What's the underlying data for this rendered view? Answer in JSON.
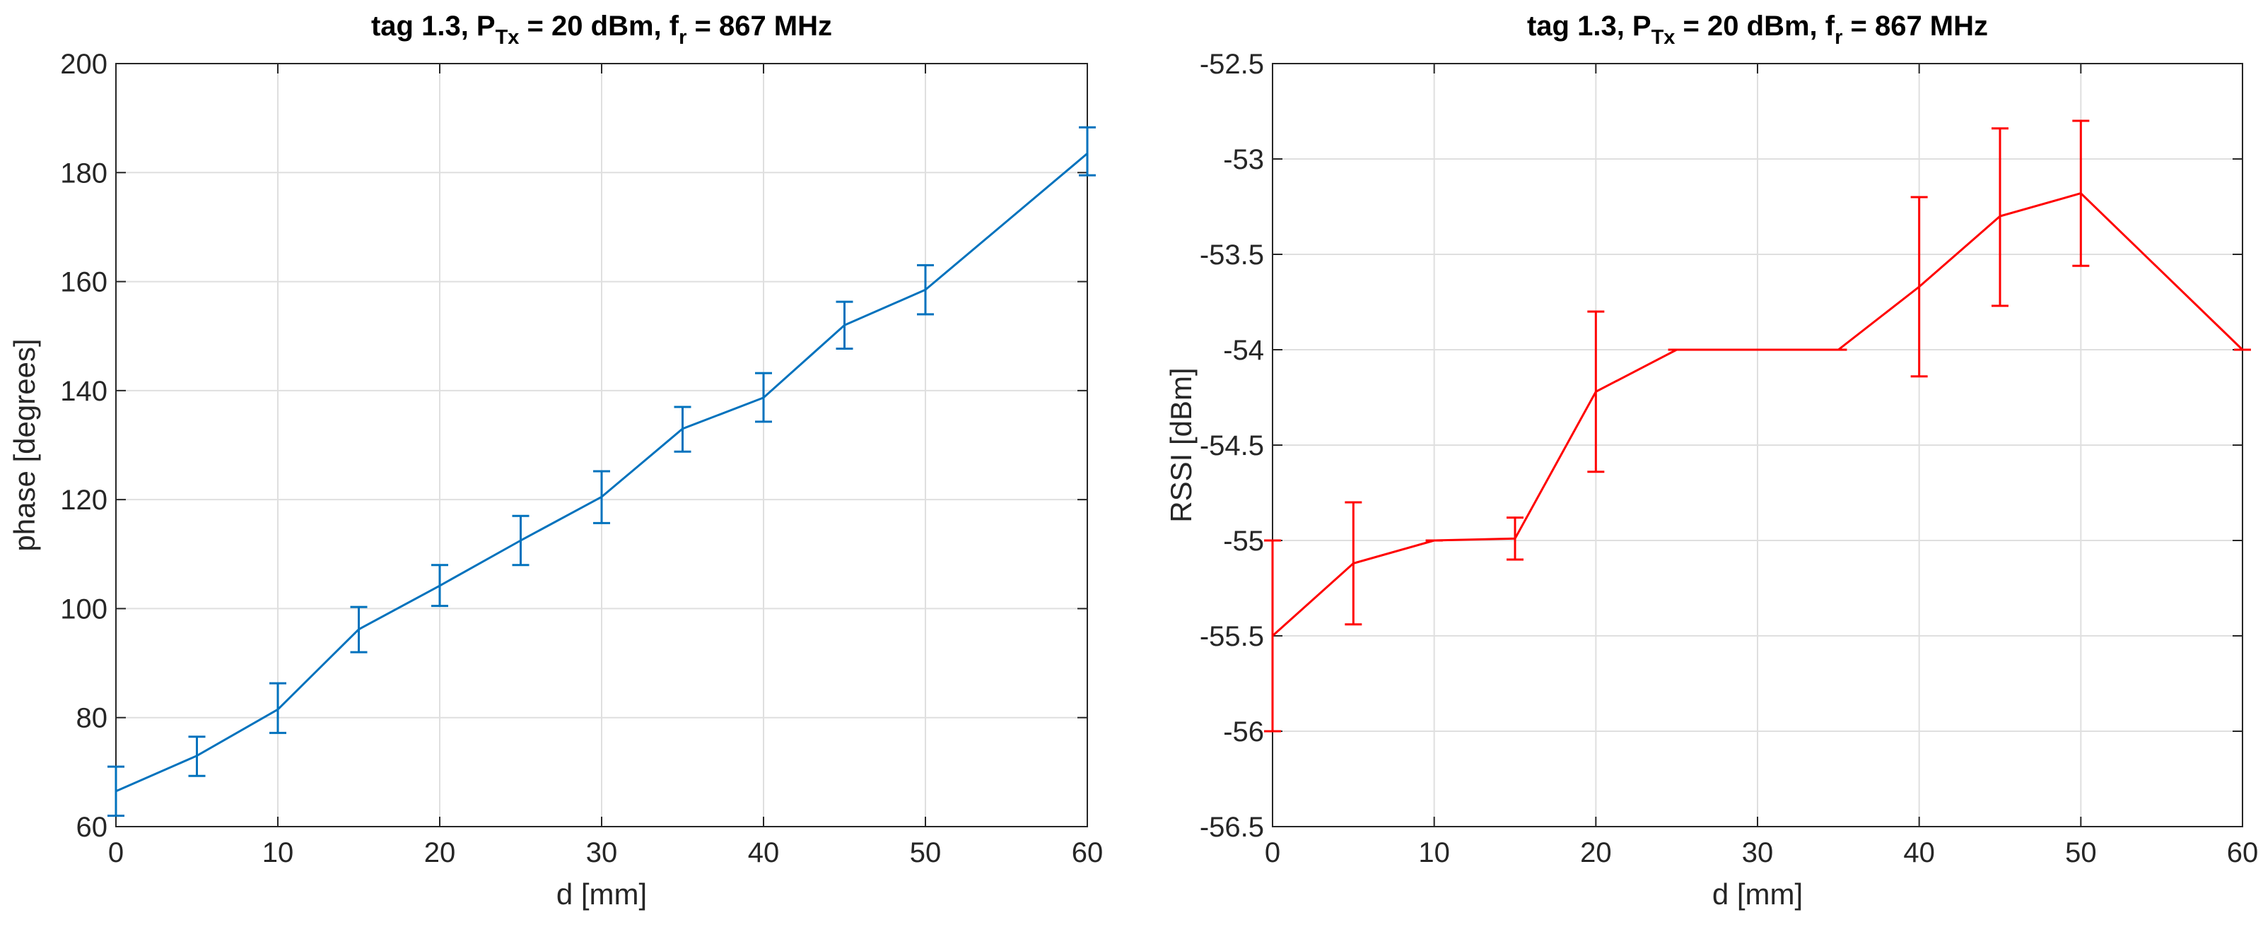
{
  "chart_data": [
    {
      "type": "line",
      "title": {
        "prefix": "tag 1.3, P",
        "sub1": "Tx",
        "mid": " = 20 dBm, f",
        "sub2": "r",
        "suffix": " = 867 MHz"
      },
      "xlabel": "d [mm]",
      "ylabel": "phase [degrees]",
      "xlim": [
        0,
        60
      ],
      "ylim": [
        60,
        200
      ],
      "xticks": [
        0,
        10,
        20,
        30,
        40,
        50,
        60
      ],
      "yticks": [
        60,
        80,
        100,
        120,
        140,
        160,
        180,
        200
      ],
      "grid": true,
      "series": [
        {
          "name": "phase",
          "color": "#0072bd",
          "x": [
            0,
            5,
            10,
            15,
            20,
            25,
            30,
            35,
            40,
            45,
            50,
            60
          ],
          "y": [
            66.5,
            73,
            81.5,
            96.2,
            104.2,
            112.5,
            120.5,
            133,
            138.7,
            152,
            158.5,
            183.5
          ],
          "err_low": [
            62,
            69.3,
            77.2,
            92,
            100.5,
            108,
            115.7,
            128.8,
            134.3,
            147.7,
            154,
            179.5
          ],
          "err_high": [
            71,
            76.5,
            86.3,
            100.3,
            108,
            117,
            125.2,
            137,
            143.2,
            156.3,
            163,
            188.3
          ]
        }
      ]
    },
    {
      "type": "line",
      "title": {
        "prefix": "tag 1.3, P",
        "sub1": "Tx",
        "mid": " = 20 dBm, f",
        "sub2": "r",
        "suffix": " = 867 MHz"
      },
      "xlabel": "d [mm]",
      "ylabel": "RSSI [dBm]",
      "xlim": [
        0,
        60
      ],
      "ylim": [
        -56.5,
        -52.5
      ],
      "xticks": [
        0,
        10,
        20,
        30,
        40,
        50,
        60
      ],
      "yticks": [
        -56.5,
        -56,
        -55.5,
        -55,
        -54.5,
        -54,
        -53.5,
        -53,
        -52.5
      ],
      "ytick_labels": [
        "-56.5",
        "-56",
        "-55.5",
        "-55",
        "-54.5",
        "-54",
        "-53.5",
        "-53",
        "-52.5"
      ],
      "grid": true,
      "series": [
        {
          "name": "RSSI",
          "color": "#ff0000",
          "x": [
            0,
            5,
            10,
            15,
            20,
            25,
            35,
            40,
            45,
            50,
            60
          ],
          "y": [
            -55.5,
            -55.12,
            -55,
            -54.99,
            -54.22,
            -54,
            -54,
            -53.67,
            -53.3,
            -53.18,
            -54
          ],
          "err_low": [
            -56,
            -55.44,
            -55,
            -55.1,
            -54.64,
            -54,
            -54,
            -54.14,
            -53.77,
            -53.56,
            -54
          ],
          "err_high": [
            -55,
            -54.8,
            -55,
            -54.88,
            -53.8,
            -54,
            -54,
            -53.2,
            -52.84,
            -52.8,
            -54
          ]
        }
      ]
    }
  ]
}
